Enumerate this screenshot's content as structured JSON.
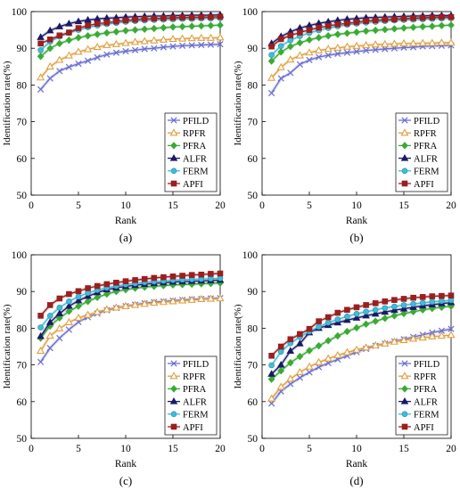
{
  "chart_data": [
    {
      "type": "line",
      "panel_label": "(a)",
      "xlabel": "Rank",
      "ylabel": "Identification rate(%)",
      "xlim": [
        0,
        20
      ],
      "ylim": [
        50,
        100
      ],
      "xticks": [
        0,
        5,
        10,
        15,
        20
      ],
      "yticks": [
        50,
        60,
        70,
        80,
        90,
        100
      ],
      "grid": false,
      "legend_position": "bottom-right",
      "x": [
        1,
        2,
        3,
        4,
        5,
        6,
        7,
        8,
        9,
        10,
        11,
        12,
        13,
        14,
        15,
        16,
        17,
        18,
        19,
        20
      ],
      "series": [
        {
          "name": "PFILD",
          "color": "#6a6fd1",
          "marker": "x",
          "values": [
            78.8,
            81.8,
            83.8,
            84.9,
            85.8,
            86.6,
            87.5,
            88.3,
            88.8,
            89.2,
            89.5,
            89.8,
            90.0,
            90.3,
            90.5,
            90.7,
            90.8,
            90.9,
            91.0,
            91.1
          ]
        },
        {
          "name": "RPFR",
          "color": "#e0a040",
          "marker": "triangle",
          "values": [
            82.0,
            85.0,
            86.8,
            88.0,
            89.0,
            89.7,
            90.3,
            90.8,
            91.1,
            91.4,
            91.7,
            91.9,
            92.1,
            92.3,
            92.5,
            92.6,
            92.7,
            92.8,
            92.8,
            92.9
          ]
        },
        {
          "name": "PFRA",
          "color": "#3aaa35",
          "marker": "diamond",
          "values": [
            87.8,
            90.0,
            91.3,
            92.2,
            92.9,
            93.4,
            93.8,
            94.2,
            94.5,
            94.8,
            95.0,
            95.2,
            95.4,
            95.6,
            95.8,
            95.9,
            96.0,
            96.1,
            96.2,
            96.3
          ]
        },
        {
          "name": "ALFR",
          "color": "#1a1a66",
          "marker": "triangle-filled",
          "values": [
            93.0,
            94.8,
            95.9,
            96.7,
            97.3,
            97.7,
            98.0,
            98.2,
            98.3,
            98.5,
            98.6,
            98.7,
            98.8,
            98.8,
            98.9,
            98.9,
            99.0,
            99.0,
            99.0,
            99.1
          ]
        },
        {
          "name": "FERM",
          "color": "#40bcd8",
          "marker": "circle",
          "values": [
            89.5,
            91.8,
            93.2,
            94.2,
            95.0,
            95.7,
            96.2,
            96.6,
            96.9,
            97.2,
            97.4,
            97.6,
            97.7,
            97.8,
            97.9,
            98.0,
            98.0,
            98.1,
            98.1,
            98.2
          ]
        },
        {
          "name": "APFI",
          "color": "#9a1f1f",
          "marker": "square",
          "values": [
            91.3,
            92.4,
            93.5,
            94.3,
            95.5,
            96.2,
            96.7,
            97.0,
            97.3,
            97.6,
            97.8,
            98.0,
            98.1,
            98.2,
            98.3,
            98.4,
            98.4,
            98.5,
            98.5,
            98.6
          ]
        }
      ]
    },
    {
      "type": "line",
      "panel_label": "(b)",
      "xlabel": "Rank",
      "ylabel": "Identification rate(%)",
      "xlim": [
        0,
        20
      ],
      "ylim": [
        50,
        100
      ],
      "xticks": [
        0,
        5,
        10,
        15,
        20
      ],
      "yticks": [
        50,
        60,
        70,
        80,
        90,
        100
      ],
      "grid": false,
      "legend_position": "bottom-right",
      "x": [
        1,
        2,
        3,
        4,
        5,
        6,
        7,
        8,
        9,
        10,
        11,
        12,
        13,
        14,
        15,
        16,
        17,
        18,
        19,
        20
      ],
      "series": [
        {
          "name": "PFILD",
          "color": "#6a6fd1",
          "marker": "x",
          "values": [
            77.8,
            81.8,
            83.3,
            85.6,
            86.8,
            87.6,
            88.1,
            88.5,
            88.8,
            89.1,
            89.4,
            89.6,
            89.8,
            90.0,
            90.2,
            90.3,
            90.5,
            90.6,
            90.7,
            90.8
          ]
        },
        {
          "name": "RPFR",
          "color": "#e0a040",
          "marker": "triangle",
          "values": [
            81.9,
            84.8,
            86.9,
            88.0,
            88.8,
            89.4,
            89.8,
            90.1,
            90.4,
            90.6,
            90.8,
            91.0,
            91.1,
            91.2,
            91.3,
            91.3,
            91.4,
            91.4,
            91.5,
            91.5
          ]
        },
        {
          "name": "PFRA",
          "color": "#3aaa35",
          "marker": "diamond",
          "values": [
            86.5,
            89.0,
            90.5,
            91.5,
            92.3,
            92.9,
            93.4,
            93.8,
            94.1,
            94.4,
            94.7,
            94.9,
            95.1,
            95.3,
            95.5,
            95.7,
            95.9,
            96.0,
            96.2,
            96.3
          ]
        },
        {
          "name": "ALFR",
          "color": "#1a1a66",
          "marker": "triangle-filled",
          "values": [
            91.3,
            93.2,
            94.5,
            95.5,
            96.2,
            96.8,
            97.2,
            97.6,
            97.9,
            98.1,
            98.3,
            98.4,
            98.5,
            98.6,
            98.7,
            98.8,
            98.8,
            98.9,
            98.9,
            98.9
          ]
        },
        {
          "name": "FERM",
          "color": "#40bcd8",
          "marker": "circle",
          "values": [
            88.2,
            90.6,
            92.2,
            93.3,
            94.2,
            94.9,
            95.5,
            96.0,
            96.4,
            96.7,
            97.0,
            97.2,
            97.4,
            97.6,
            97.7,
            97.8,
            97.9,
            98.0,
            98.1,
            98.2
          ]
        },
        {
          "name": "APFI",
          "color": "#9a1f1f",
          "marker": "square",
          "values": [
            90.5,
            92.5,
            93.5,
            94.3,
            95.0,
            95.6,
            96.1,
            96.5,
            96.8,
            97.1,
            97.4,
            97.6,
            97.8,
            97.9,
            98.1,
            98.2,
            98.3,
            98.4,
            98.5,
            98.5
          ]
        }
      ]
    },
    {
      "type": "line",
      "panel_label": "(c)",
      "xlabel": "Rank",
      "ylabel": "Identification rate(%)",
      "xlim": [
        0,
        20
      ],
      "ylim": [
        50,
        100
      ],
      "xticks": [
        0,
        5,
        10,
        15,
        20
      ],
      "yticks": [
        50,
        60,
        70,
        80,
        90,
        100
      ],
      "grid": false,
      "legend_position": "bottom-right",
      "x": [
        1,
        2,
        3,
        4,
        5,
        6,
        7,
        8,
        9,
        10,
        11,
        12,
        13,
        14,
        15,
        16,
        17,
        18,
        19,
        20
      ],
      "series": [
        {
          "name": "PFILD",
          "color": "#6a6fd1",
          "marker": "x",
          "values": [
            70.8,
            74.6,
            77.3,
            79.6,
            81.7,
            83.0,
            84.0,
            84.9,
            85.5,
            86.0,
            86.4,
            86.8,
            87.1,
            87.3,
            87.5,
            87.7,
            87.9,
            88.0,
            88.1,
            88.2
          ]
        },
        {
          "name": "RPFR",
          "color": "#e0a040",
          "marker": "triangle",
          "values": [
            73.8,
            77.9,
            79.9,
            81.6,
            82.8,
            83.6,
            84.4,
            85.1,
            85.6,
            86.0,
            86.3,
            86.6,
            86.9,
            87.1,
            87.3,
            87.5,
            87.7,
            87.9,
            88.0,
            88.1
          ]
        },
        {
          "name": "PFRA",
          "color": "#3aaa35",
          "marker": "diamond",
          "values": [
            77.3,
            80.6,
            82.8,
            84.6,
            86.0,
            87.3,
            88.4,
            89.3,
            90.0,
            90.5,
            90.9,
            91.2,
            91.4,
            91.6,
            91.8,
            91.9,
            92.0,
            92.1,
            92.2,
            92.3
          ]
        },
        {
          "name": "ALFR",
          "color": "#1a1a66",
          "marker": "triangle-filled",
          "values": [
            77.8,
            81.6,
            84.0,
            86.0,
            87.5,
            88.7,
            89.7,
            90.5,
            91.0,
            91.4,
            91.7,
            92.0,
            92.2,
            92.4,
            92.6,
            92.7,
            92.8,
            92.9,
            93.0,
            93.1
          ]
        },
        {
          "name": "FERM",
          "color": "#40bcd8",
          "marker": "circle",
          "values": [
            80.2,
            83.4,
            85.6,
            87.3,
            88.6,
            89.6,
            90.4,
            91.0,
            91.5,
            91.9,
            92.2,
            92.5,
            92.7,
            92.9,
            93.1,
            93.2,
            93.3,
            93.4,
            93.5,
            93.6
          ]
        },
        {
          "name": "APFI",
          "color": "#9a1f1f",
          "marker": "square",
          "values": [
            83.4,
            86.3,
            88.1,
            89.3,
            90.1,
            90.9,
            91.5,
            92.0,
            92.4,
            92.8,
            93.1,
            93.4,
            93.7,
            93.9,
            94.1,
            94.3,
            94.5,
            94.6,
            94.8,
            94.9
          ]
        }
      ]
    },
    {
      "type": "line",
      "panel_label": "(d)",
      "xlabel": "Rank",
      "ylabel": "Identification rate(%)",
      "xlim": [
        0,
        20
      ],
      "ylim": [
        50,
        100
      ],
      "xticks": [
        0,
        5,
        10,
        15,
        20
      ],
      "yticks": [
        50,
        60,
        70,
        80,
        90,
        100
      ],
      "grid": false,
      "legend_position": "bottom-right",
      "x": [
        1,
        2,
        3,
        4,
        5,
        6,
        7,
        8,
        9,
        10,
        11,
        12,
        13,
        14,
        15,
        16,
        17,
        18,
        19,
        20
      ],
      "series": [
        {
          "name": "PFILD",
          "color": "#6a6fd1",
          "marker": "x",
          "values": [
            59.5,
            62.8,
            64.8,
            66.5,
            68.0,
            69.4,
            70.5,
            71.5,
            72.5,
            73.5,
            74.4,
            75.2,
            75.8,
            76.4,
            77.0,
            77.6,
            78.2,
            78.8,
            79.3,
            79.8
          ]
        },
        {
          "name": "RPFR",
          "color": "#e0a040",
          "marker": "triangle",
          "values": [
            60.8,
            64.0,
            66.2,
            68.0,
            69.5,
            70.7,
            71.7,
            72.6,
            73.4,
            74.1,
            74.7,
            75.3,
            75.8,
            76.3,
            76.7,
            77.1,
            77.4,
            77.7,
            77.9,
            78.1
          ]
        },
        {
          "name": "PFRA",
          "color": "#3aaa35",
          "marker": "diamond",
          "values": [
            66.1,
            68.4,
            70.6,
            72.3,
            73.9,
            75.2,
            76.6,
            77.9,
            79.1,
            80.1,
            81.1,
            81.9,
            82.7,
            83.4,
            84.0,
            84.5,
            85.0,
            85.4,
            85.7,
            86.0
          ]
        },
        {
          "name": "ALFR",
          "color": "#1a1a66",
          "marker": "triangle-filled",
          "values": [
            67.5,
            70.0,
            73.8,
            75.8,
            78.8,
            80.0,
            80.8,
            81.5,
            82.2,
            82.8,
            83.4,
            83.9,
            84.4,
            84.9,
            85.3,
            85.7,
            86.1,
            86.4,
            86.7,
            87.0
          ]
        },
        {
          "name": "FERM",
          "color": "#40bcd8",
          "marker": "circle",
          "values": [
            69.9,
            73.6,
            75.9,
            77.6,
            79.1,
            80.4,
            81.5,
            82.4,
            83.2,
            83.9,
            84.5,
            85.0,
            85.5,
            85.9,
            86.3,
            86.6,
            86.9,
            87.2,
            87.4,
            87.6
          ]
        },
        {
          "name": "APFI",
          "color": "#9a1f1f",
          "marker": "square",
          "values": [
            72.5,
            75.0,
            77.0,
            78.4,
            79.8,
            81.9,
            83.0,
            84.2,
            85.0,
            85.7,
            86.3,
            86.8,
            87.3,
            87.7,
            88.0,
            88.3,
            88.5,
            88.7,
            88.8,
            88.9
          ]
        }
      ]
    }
  ]
}
